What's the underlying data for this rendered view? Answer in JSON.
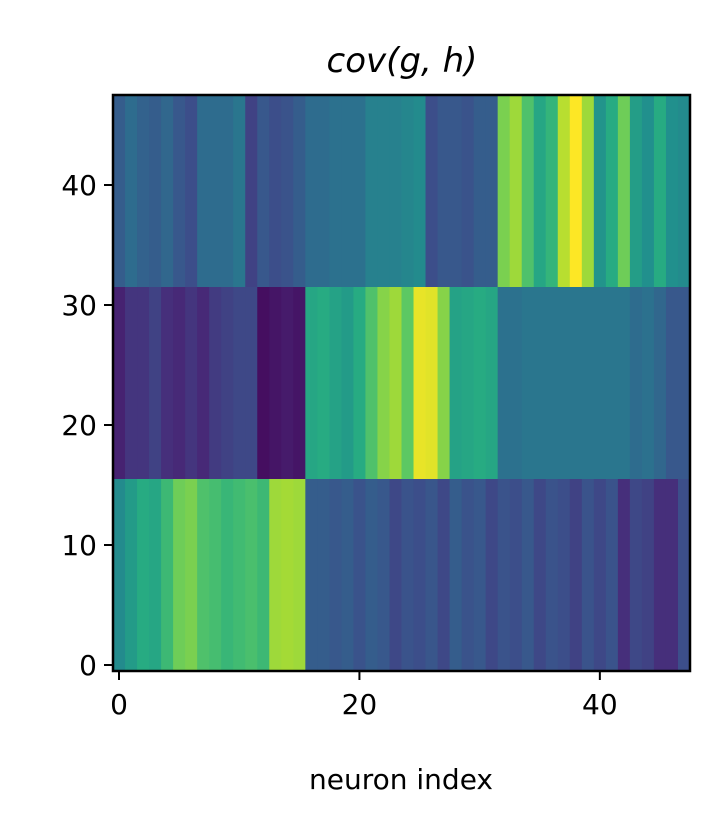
{
  "chart_data": {
    "type": "heatmap",
    "title": "cov(g, h)",
    "xlabel": "neuron index",
    "ylabel": "",
    "xlim": [
      -0.5,
      47.5
    ],
    "ylim": [
      -0.5,
      47.5
    ],
    "xticks": [
      0,
      20,
      40
    ],
    "yticks": [
      0,
      10,
      20,
      30,
      40
    ],
    "colormap": "viridis",
    "value_range": [
      0,
      1
    ],
    "row_blocks": [
      {
        "rows": [
          0,
          15
        ],
        "columns": [
          0.48,
          0.55,
          0.62,
          0.6,
          0.68,
          0.78,
          0.8,
          0.72,
          0.7,
          0.67,
          0.69,
          0.71,
          0.68,
          0.86,
          0.87,
          0.86,
          0.3,
          0.3,
          0.28,
          0.3,
          0.26,
          0.3,
          0.28,
          0.22,
          0.26,
          0.24,
          0.27,
          0.22,
          0.3,
          0.26,
          0.28,
          0.22,
          0.26,
          0.24,
          0.28,
          0.22,
          0.26,
          0.24,
          0.2,
          0.26,
          0.22,
          0.26,
          0.14,
          0.22,
          0.2,
          0.14,
          0.14,
          0.24
        ]
      },
      {
        "rows": [
          16,
          31
        ],
        "columns": [
          0.1,
          0.16,
          0.16,
          0.2,
          0.14,
          0.12,
          0.16,
          0.12,
          0.18,
          0.2,
          0.22,
          0.22,
          0.04,
          0.06,
          0.08,
          0.06,
          0.6,
          0.62,
          0.58,
          0.55,
          0.62,
          0.72,
          0.82,
          0.86,
          0.75,
          0.97,
          0.96,
          0.82,
          0.58,
          0.6,
          0.62,
          0.6,
          0.38,
          0.38,
          0.4,
          0.4,
          0.4,
          0.4,
          0.4,
          0.4,
          0.4,
          0.4,
          0.4,
          0.36,
          0.38,
          0.34,
          0.28,
          0.28
        ]
      },
      {
        "rows": [
          32,
          47
        ],
        "columns": [
          0.3,
          0.36,
          0.32,
          0.3,
          0.34,
          0.28,
          0.24,
          0.36,
          0.36,
          0.36,
          0.4,
          0.2,
          0.28,
          0.24,
          0.26,
          0.3,
          0.36,
          0.36,
          0.38,
          0.38,
          0.38,
          0.44,
          0.44,
          0.44,
          0.46,
          0.48,
          0.24,
          0.28,
          0.28,
          0.26,
          0.3,
          0.3,
          0.8,
          0.86,
          0.72,
          0.6,
          0.66,
          0.9,
          1.0,
          0.86,
          0.52,
          0.62,
          0.78,
          0.56,
          0.5,
          0.62,
          0.5,
          0.48
        ]
      }
    ]
  }
}
